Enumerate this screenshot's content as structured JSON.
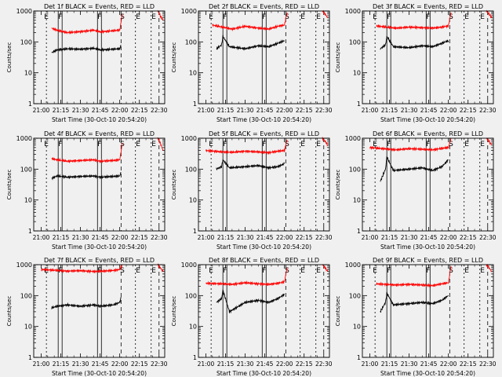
{
  "figure": {
    "background": "#f0f0f0",
    "colors": {
      "events": "#000000",
      "lld": "#ff0000"
    }
  },
  "chart_data": [
    {
      "type": "line",
      "title": "Det 1f BLACK = Events, RED = LLD",
      "xlabel": "Start Time (30-Oct-10 20:54:20)",
      "ylabel": "Counts/sec",
      "yscale": "log",
      "ylim": [
        1,
        1000
      ],
      "yticks": [
        "1",
        "10",
        "100",
        "1000"
      ],
      "xticks": [
        "21:00",
        "21:15",
        "21:30",
        "21:45",
        "22:00",
        "22:15",
        "22:30"
      ],
      "xlim": [
        "20:54:20",
        "22:34:20"
      ],
      "markers": [
        "E",
        "F",
        "F",
        "S",
        "E",
        "E"
      ],
      "series": [
        {
          "color": "#ff0000",
          "segments": [
            {
              "x": [
                "21:08",
                "21:12",
                "21:20",
                "21:30",
                "21:40",
                "21:45",
                "21:55",
                "22:00",
                "22:02"
              ],
              "y": [
                280,
                240,
                200,
                215,
                240,
                210,
                230,
                240,
                800
              ]
            },
            {
              "x": [
                "22:29",
                "22:31",
                "22:33"
              ],
              "y": [
                1000,
                700,
                500
              ]
            }
          ]
        },
        {
          "color": "#000000",
          "segments": [
            {
              "x": [
                "21:08",
                "21:12",
                "21:20",
                "21:30",
                "21:40",
                "21:45",
                "21:55",
                "22:00",
                "22:01"
              ],
              "y": [
                45,
                55,
                60,
                58,
                62,
                55,
                58,
                60,
                80
              ]
            }
          ]
        }
      ]
    },
    {
      "type": "line",
      "title": "Det 2f BLACK = Events, RED = LLD",
      "xlabel": "Start Time (30-Oct-10 20:54:20)",
      "ylabel": "Counts/sec",
      "yscale": "log",
      "ylim": [
        1,
        1000
      ],
      "yticks": [
        "1",
        "10",
        "100",
        "1000"
      ],
      "xticks": [
        "21:00",
        "21:15",
        "21:30",
        "21:45",
        "22:00",
        "22:15",
        "22:30"
      ],
      "xlim": [
        "20:54:20",
        "22:34:20"
      ],
      "markers": [
        "E",
        "F",
        "F",
        "S",
        "E",
        "E"
      ],
      "series": [
        {
          "color": "#ff0000",
          "segments": [
            {
              "x": [
                "21:05",
                "21:13",
                "21:20",
                "21:30",
                "21:40",
                "21:48",
                "21:55",
                "22:00",
                "22:02"
              ],
              "y": [
                350,
                300,
                260,
                320,
                280,
                260,
                320,
                350,
                900
              ]
            },
            {
              "x": [
                "22:29",
                "22:31",
                "22:33"
              ],
              "y": [
                1000,
                800,
                600
              ]
            }
          ]
        },
        {
          "color": "#000000",
          "segments": [
            {
              "x": [
                "21:08",
                "21:12",
                "21:13",
                "21:18",
                "21:30",
                "21:40",
                "21:48",
                "21:55",
                "22:00"
              ],
              "y": [
                60,
                80,
                150,
                70,
                60,
                75,
                70,
                90,
                110
              ]
            }
          ]
        }
      ]
    },
    {
      "type": "line",
      "title": "Det 3f BLACK = Events, RED = LLD",
      "xlabel": "Start Time (30-Oct-10 20:54:20)",
      "ylabel": "Counts/sec",
      "yscale": "log",
      "ylim": [
        1,
        1000
      ],
      "yticks": [
        "1",
        "10",
        "100",
        "1000"
      ],
      "xticks": [
        "21:00",
        "21:15",
        "21:30",
        "21:45",
        "22:00",
        "22:15",
        "22:30"
      ],
      "xlim": [
        "20:54:20",
        "22:34:20"
      ],
      "markers": [
        "E",
        "F",
        "F",
        "S",
        "E",
        "E"
      ],
      "series": [
        {
          "color": "#ff0000",
          "segments": [
            {
              "x": [
                "21:05",
                "21:13",
                "21:20",
                "21:30",
                "21:40",
                "21:48",
                "21:55",
                "22:00",
                "22:02"
              ],
              "y": [
                330,
                300,
                280,
                300,
                290,
                280,
                300,
                330,
                900
              ]
            },
            {
              "x": [
                "22:29",
                "22:31",
                "22:33"
              ],
              "y": [
                1000,
                800,
                600
              ]
            }
          ]
        },
        {
          "color": "#000000",
          "segments": [
            {
              "x": [
                "21:08",
                "21:12",
                "21:13",
                "21:18",
                "21:30",
                "21:40",
                "21:48",
                "21:55",
                "22:00"
              ],
              "y": [
                60,
                80,
                150,
                70,
                65,
                75,
                70,
                90,
                110
              ]
            }
          ]
        }
      ]
    },
    {
      "type": "line",
      "title": "Det 4f BLACK = Events, RED = LLD",
      "xlabel": "Start Time (30-Oct-10 20:54:20)",
      "ylabel": "Counts/sec",
      "yscale": "log",
      "ylim": [
        1,
        1000
      ],
      "yticks": [
        "1",
        "10",
        "100",
        "1000"
      ],
      "xticks": [
        "21:00",
        "21:15",
        "21:30",
        "21:45",
        "22:00",
        "22:15",
        "22:30"
      ],
      "xlim": [
        "20:54:20",
        "22:34:20"
      ],
      "markers": [
        "E",
        "F",
        "F",
        "S",
        "E",
        "E"
      ],
      "series": [
        {
          "color": "#ff0000",
          "segments": [
            {
              "x": [
                "21:08",
                "21:12",
                "21:20",
                "21:30",
                "21:40",
                "21:45",
                "21:55",
                "22:00",
                "22:02"
              ],
              "y": [
                220,
                200,
                180,
                190,
                200,
                180,
                190,
                200,
                700
              ]
            },
            {
              "x": [
                "22:29",
                "22:31",
                "22:33"
              ],
              "y": [
                1000,
                700,
                400
              ]
            }
          ]
        },
        {
          "color": "#000000",
          "segments": [
            {
              "x": [
                "21:08",
                "21:12",
                "21:20",
                "21:30",
                "21:40",
                "21:45",
                "21:55",
                "22:00",
                "22:01"
              ],
              "y": [
                50,
                60,
                55,
                58,
                60,
                55,
                58,
                60,
                80
              ]
            }
          ]
        }
      ]
    },
    {
      "type": "line",
      "title": "Det 5f BLACK = Events, RED = LLD",
      "xlabel": "Start Time (30-Oct-10 20:54:20)",
      "ylabel": "Counts/sec",
      "yscale": "log",
      "ylim": [
        1,
        1000
      ],
      "yticks": [
        "1",
        "10",
        "100",
        "1000"
      ],
      "xticks": [
        "21:00",
        "21:15",
        "21:30",
        "21:45",
        "22:00",
        "22:15",
        "22:30"
      ],
      "xlim": [
        "20:54:20",
        "22:34:20"
      ],
      "markers": [
        "E",
        "F",
        "F",
        "S",
        "E",
        "E"
      ],
      "series": [
        {
          "color": "#ff0000",
          "segments": [
            {
              "x": [
                "21:00",
                "21:13",
                "21:20",
                "21:30",
                "21:40",
                "21:48",
                "21:55",
                "22:00",
                "22:02"
              ],
              "y": [
                400,
                360,
                350,
                380,
                360,
                340,
                380,
                400,
                900
              ]
            },
            {
              "x": [
                "22:29",
                "22:31",
                "22:33"
              ],
              "y": [
                1000,
                800,
                600
              ]
            }
          ]
        },
        {
          "color": "#000000",
          "segments": [
            {
              "x": [
                "21:08",
                "21:12",
                "21:13",
                "21:18",
                "21:30",
                "21:40",
                "21:48",
                "21:55",
                "22:00"
              ],
              "y": [
                100,
                120,
                200,
                110,
                120,
                130,
                110,
                120,
                150
              ]
            }
          ]
        }
      ]
    },
    {
      "type": "line",
      "title": "Det 6f BLACK = Events, RED = LLD",
      "xlabel": "Start Time (30-Oct-10 20:54:20)",
      "ylabel": "Counts/sec",
      "yscale": "log",
      "ylim": [
        1,
        1000
      ],
      "yticks": [
        "1",
        "10",
        "100",
        "1000"
      ],
      "xticks": [
        "21:00",
        "21:15",
        "21:30",
        "21:45",
        "22:00",
        "22:15",
        "22:30"
      ],
      "xlim": [
        "20:54:20",
        "22:34:20"
      ],
      "markers": [
        "E",
        "F",
        "F",
        "S",
        "E",
        "E"
      ],
      "series": [
        {
          "color": "#ff0000",
          "segments": [
            {
              "x": [
                "21:00",
                "21:13",
                "21:20",
                "21:30",
                "21:40",
                "21:48",
                "21:55",
                "22:00",
                "22:02"
              ],
              "y": [
                500,
                450,
                420,
                460,
                440,
                420,
                470,
                500,
                1000
              ]
            },
            {
              "x": [
                "22:29",
                "22:31",
                "22:33"
              ],
              "y": [
                1000,
                800,
                600
              ]
            }
          ]
        },
        {
          "color": "#000000",
          "segments": [
            {
              "x": [
                "21:08",
                "21:12",
                "21:13",
                "21:18",
                "21:30",
                "21:40",
                "21:48",
                "21:55",
                "22:00"
              ],
              "y": [
                40,
                100,
                250,
                90,
                100,
                110,
                90,
                120,
                200
              ]
            }
          ]
        }
      ]
    },
    {
      "type": "line",
      "title": "Det 7f BLACK = Events, RED = LLD",
      "xlabel": "Start Time (30-Oct-10 20:54:20)",
      "ylabel": "Counts/sec",
      "yscale": "log",
      "ylim": [
        1,
        1000
      ],
      "yticks": [
        "1",
        "10",
        "100",
        "1000"
      ],
      "xticks": [
        "21:00",
        "21:15",
        "21:30",
        "21:45",
        "22:00",
        "22:15",
        "22:30"
      ],
      "xlim": [
        "20:54:20",
        "22:34:20"
      ],
      "markers": [
        "E",
        "F",
        "F",
        "S",
        "E",
        "E"
      ],
      "series": [
        {
          "color": "#ff0000",
          "segments": [
            {
              "x": [
                "21:00",
                "21:13",
                "21:20",
                "21:30",
                "21:40",
                "21:48",
                "21:55",
                "22:00",
                "22:02"
              ],
              "y": [
                700,
                650,
                620,
                640,
                600,
                620,
                650,
                700,
                1000
              ]
            },
            {
              "x": [
                "22:29",
                "22:31",
                "22:33"
              ],
              "y": [
                1000,
                800,
                600
              ]
            }
          ]
        },
        {
          "color": "#000000",
          "segments": [
            {
              "x": [
                "21:08",
                "21:12",
                "21:20",
                "21:30",
                "21:40",
                "21:45",
                "21:55",
                "22:00",
                "22:01"
              ],
              "y": [
                40,
                45,
                50,
                45,
                50,
                45,
                50,
                60,
                90
              ]
            }
          ]
        }
      ]
    },
    {
      "type": "line",
      "title": "Det 8f BLACK = Events, RED = LLD",
      "xlabel": "Start Time (30-Oct-10 20:54:20)",
      "ylabel": "Counts/sec",
      "yscale": "log",
      "ylim": [
        1,
        1000
      ],
      "yticks": [
        "1",
        "10",
        "100",
        "1000"
      ],
      "xticks": [
        "21:00",
        "21:15",
        "21:30",
        "21:45",
        "22:00",
        "22:15",
        "22:30"
      ],
      "xlim": [
        "20:54:20",
        "22:34:20"
      ],
      "markers": [
        "E",
        "F",
        "F",
        "S",
        "E",
        "E"
      ],
      "series": [
        {
          "color": "#ff0000",
          "segments": [
            {
              "x": [
                "21:00",
                "21:13",
                "21:20",
                "21:30",
                "21:40",
                "21:48",
                "21:55",
                "22:00",
                "22:02"
              ],
              "y": [
                250,
                240,
                230,
                260,
                240,
                230,
                250,
                280,
                800
              ]
            },
            {
              "x": [
                "22:29",
                "22:31",
                "22:33"
              ],
              "y": [
                1000,
                800,
                600
              ]
            }
          ]
        },
        {
          "color": "#000000",
          "segments": [
            {
              "x": [
                "21:08",
                "21:12",
                "21:13",
                "21:18",
                "21:30",
                "21:40",
                "21:48",
                "21:55",
                "22:00"
              ],
              "y": [
                60,
                80,
                150,
                30,
                60,
                70,
                60,
                80,
                110
              ]
            }
          ]
        }
      ]
    },
    {
      "type": "line",
      "title": "Det 9f BLACK = Events, RED = LLD",
      "xlabel": "Start Time (30-Oct-10 20:54:20)",
      "ylabel": "Counts/sec",
      "yscale": "log",
      "ylim": [
        1,
        1000
      ],
      "yticks": [
        "1",
        "10",
        "100",
        "1000"
      ],
      "xticks": [
        "21:00",
        "21:15",
        "21:30",
        "21:45",
        "22:00",
        "22:15",
        "22:30"
      ],
      "xlim": [
        "20:54:20",
        "22:34:20"
      ],
      "markers": [
        "E",
        "F",
        "F",
        "S",
        "E",
        "E"
      ],
      "series": [
        {
          "color": "#ff0000",
          "segments": [
            {
              "x": [
                "21:05",
                "21:13",
                "21:20",
                "21:30",
                "21:40",
                "21:48",
                "21:55",
                "22:00",
                "22:02"
              ],
              "y": [
                240,
                230,
                220,
                230,
                220,
                210,
                240,
                260,
                900
              ]
            },
            {
              "x": [
                "22:29",
                "22:31",
                "22:33"
              ],
              "y": [
                1000,
                800,
                600
              ]
            }
          ]
        },
        {
          "color": "#000000",
          "segments": [
            {
              "x": [
                "21:08",
                "21:12",
                "21:13",
                "21:18",
                "21:30",
                "21:40",
                "21:48",
                "21:55",
                "22:00"
              ],
              "y": [
                30,
                60,
                120,
                50,
                55,
                60,
                55,
                70,
                100
              ]
            }
          ]
        }
      ]
    }
  ]
}
